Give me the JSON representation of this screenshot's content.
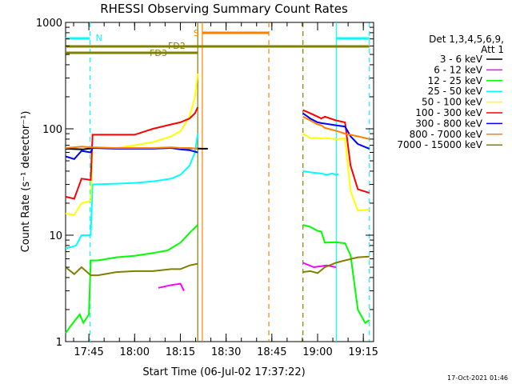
{
  "chart_data": {
    "type": "line",
    "title": "RHESSI Observing Summary Count Rates",
    "xlabel": "Start Time (06-Jul-02 17:37:22)",
    "ylabel": "Count Rate (s⁻¹ detector⁻¹)",
    "y_scale": "log",
    "ylim": [
      1,
      1000
    ],
    "xlim": [
      17.6228,
      19.3061
    ],
    "x_ticks": [
      {
        "value": 17.75,
        "label": "17:45"
      },
      {
        "value": 18.0,
        "label": "18:00"
      },
      {
        "value": 18.25,
        "label": "18:15"
      },
      {
        "value": 18.5,
        "label": "18:30"
      },
      {
        "value": 18.75,
        "label": "18:45"
      },
      {
        "value": 19.0,
        "label": "19:00"
      },
      {
        "value": 19.25,
        "label": "19:15"
      }
    ],
    "y_ticks": [
      {
        "value": 1,
        "label": "1"
      },
      {
        "value": 10,
        "label": "10"
      },
      {
        "value": 100,
        "label": "100"
      },
      {
        "value": 1000,
        "label": "1000"
      }
    ],
    "legend_header": [
      "Det 1,3,4,5,6,9,",
      "Att 1"
    ],
    "series": [
      {
        "name": "3 - 6 keV",
        "color": "#000000",
        "points": [
          [
            17.623,
            65
          ],
          [
            17.72,
            64
          ],
          [
            17.77,
            66
          ],
          [
            18.0,
            66
          ],
          [
            18.25,
            66
          ],
          [
            18.37,
            65
          ],
          [
            18.4,
            65
          ]
        ]
      },
      {
        "name": "6 - 12 keV",
        "color": "#ff00ff",
        "points": [
          [
            18.13,
            3.2
          ],
          [
            18.2,
            3.4
          ],
          [
            18.25,
            3.5
          ],
          [
            18.27,
            3.0
          ],
          [
            18.92,
            5.5
          ],
          [
            18.98,
            5.0
          ],
          [
            19.05,
            5.2
          ],
          [
            19.1,
            5.0
          ]
        ]
      },
      {
        "name": "12 - 25 keV",
        "color": "#00ff00",
        "points": [
          [
            17.623,
            1.2
          ],
          [
            17.65,
            1.4
          ],
          [
            17.7,
            1.8
          ],
          [
            17.72,
            1.5
          ],
          [
            17.75,
            1.8
          ],
          [
            17.76,
            5.8
          ],
          [
            17.8,
            5.8
          ],
          [
            17.9,
            6.2
          ],
          [
            18.0,
            6.4
          ],
          [
            18.1,
            6.8
          ],
          [
            18.18,
            7.2
          ],
          [
            18.25,
            8.5
          ],
          [
            18.3,
            10.5
          ],
          [
            18.345,
            12.5
          ],
          [
            18.92,
            12.5
          ],
          [
            18.96,
            12
          ],
          [
            19.0,
            11
          ],
          [
            19.02,
            10.8
          ],
          [
            19.04,
            8.5
          ],
          [
            19.1,
            8.6
          ],
          [
            19.15,
            8.4
          ],
          [
            19.18,
            6.5
          ],
          [
            19.22,
            2.0
          ],
          [
            19.26,
            1.5
          ],
          [
            19.283,
            1.6
          ]
        ]
      },
      {
        "name": "25 - 50 keV",
        "color": "#00ffff",
        "points": [
          [
            17.623,
            7.5
          ],
          [
            17.68,
            8.0
          ],
          [
            17.71,
            10
          ],
          [
            17.76,
            10
          ],
          [
            17.77,
            30
          ],
          [
            17.9,
            30.5
          ],
          [
            18.0,
            31
          ],
          [
            18.1,
            32
          ],
          [
            18.2,
            34
          ],
          [
            18.25,
            37
          ],
          [
            18.3,
            45
          ],
          [
            18.33,
            60
          ],
          [
            18.345,
            90
          ],
          [
            18.92,
            40
          ],
          [
            18.96,
            39
          ],
          [
            19.02,
            38
          ],
          [
            19.05,
            37
          ],
          [
            19.08,
            38
          ],
          [
            19.1,
            37
          ],
          [
            19.115,
            37.5
          ]
        ]
      },
      {
        "name": "50 - 100 keV",
        "color": "#ffff00",
        "points": [
          [
            17.623,
            16
          ],
          [
            17.67,
            15.5
          ],
          [
            17.71,
            20
          ],
          [
            17.76,
            21
          ],
          [
            17.77,
            66
          ],
          [
            17.9,
            66
          ],
          [
            18.0,
            70
          ],
          [
            18.1,
            75
          ],
          [
            18.2,
            85
          ],
          [
            18.25,
            95
          ],
          [
            18.3,
            130
          ],
          [
            18.33,
            200
          ],
          [
            18.345,
            330
          ],
          [
            18.92,
            90
          ],
          [
            18.96,
            82
          ],
          [
            19.0,
            82
          ],
          [
            19.02,
            81
          ],
          [
            19.04,
            82
          ],
          [
            19.1,
            80
          ],
          [
            19.15,
            81
          ],
          [
            19.18,
            26
          ],
          [
            19.22,
            17
          ],
          [
            19.283,
            17.5
          ]
        ]
      },
      {
        "name": "100 - 300 keV",
        "color": "#ff0000",
        "points": [
          [
            17.623,
            23
          ],
          [
            17.67,
            22
          ],
          [
            17.71,
            34
          ],
          [
            17.76,
            33
          ],
          [
            17.77,
            88
          ],
          [
            17.9,
            88
          ],
          [
            18.0,
            88
          ],
          [
            18.1,
            100
          ],
          [
            18.2,
            110
          ],
          [
            18.25,
            115
          ],
          [
            18.3,
            125
          ],
          [
            18.33,
            140
          ],
          [
            18.345,
            160
          ],
          [
            18.92,
            150
          ],
          [
            18.96,
            140
          ],
          [
            19.0,
            130
          ],
          [
            19.02,
            125
          ],
          [
            19.04,
            130
          ],
          [
            19.1,
            120
          ],
          [
            19.15,
            115
          ],
          [
            19.18,
            45
          ],
          [
            19.22,
            27
          ],
          [
            19.283,
            25
          ]
        ]
      },
      {
        "name": "300 - 800 keV",
        "color": "#0000ff",
        "points": [
          [
            17.623,
            55
          ],
          [
            17.67,
            52
          ],
          [
            17.71,
            62
          ],
          [
            17.76,
            60
          ],
          [
            17.77,
            66
          ],
          [
            17.9,
            65
          ],
          [
            18.0,
            65
          ],
          [
            18.1,
            65
          ],
          [
            18.2,
            66
          ],
          [
            18.25,
            64
          ],
          [
            18.3,
            63
          ],
          [
            18.345,
            60
          ],
          [
            18.92,
            140
          ],
          [
            18.96,
            125
          ],
          [
            19.0,
            115
          ],
          [
            19.02,
            113
          ],
          [
            19.04,
            112
          ],
          [
            19.1,
            108
          ],
          [
            19.15,
            105
          ],
          [
            19.18,
            85
          ],
          [
            19.22,
            72
          ],
          [
            19.283,
            65
          ]
        ]
      },
      {
        "name": "800 - 7000 keV",
        "color": "#ff8000",
        "points": [
          [
            17.623,
            66
          ],
          [
            17.67,
            67
          ],
          [
            17.71,
            68
          ],
          [
            17.76,
            67
          ],
          [
            17.9,
            66
          ],
          [
            18.0,
            66
          ],
          [
            18.1,
            66
          ],
          [
            18.2,
            67
          ],
          [
            18.25,
            66
          ],
          [
            18.3,
            66
          ],
          [
            18.345,
            65
          ],
          [
            18.92,
            130
          ],
          [
            18.96,
            120
          ],
          [
            19.0,
            110
          ],
          [
            19.02,
            108
          ],
          [
            19.04,
            102
          ],
          [
            19.1,
            96
          ],
          [
            19.15,
            90
          ],
          [
            19.22,
            85
          ],
          [
            19.283,
            80
          ]
        ]
      },
      {
        "name": "7000 - 15000 keV",
        "color": "#808000",
        "points": [
          [
            17.623,
            5.0
          ],
          [
            17.67,
            4.3
          ],
          [
            17.71,
            5.0
          ],
          [
            17.76,
            4.2
          ],
          [
            17.8,
            4.2
          ],
          [
            17.9,
            4.5
          ],
          [
            18.0,
            4.6
          ],
          [
            18.1,
            4.6
          ],
          [
            18.2,
            4.8
          ],
          [
            18.25,
            4.8
          ],
          [
            18.3,
            5.2
          ],
          [
            18.345,
            5.4
          ],
          [
            18.92,
            4.5
          ],
          [
            18.96,
            4.6
          ],
          [
            19.0,
            4.4
          ],
          [
            19.04,
            5.0
          ],
          [
            19.1,
            5.5
          ],
          [
            19.15,
            5.8
          ],
          [
            19.22,
            6.2
          ],
          [
            19.283,
            6.3
          ]
        ]
      }
    ],
    "night_intervals_cyan": [
      [
        17.623,
        17.7556
      ],
      [
        19.102,
        19.283
      ]
    ],
    "night_labels": [
      {
        "x": 17.77,
        "label": "N"
      }
    ],
    "saa_intervals_orange": [
      [
        18.37,
        18.7335
      ]
    ],
    "saa_labels": [
      {
        "x": 18.37,
        "label": "S"
      }
    ],
    "flare_decimation": [
      {
        "label": "FD2",
        "x0": 17.623,
        "x1": 18.37
      },
      {
        "label": "FD3",
        "x0": 17.623,
        "x1": 18.345
      },
      {
        "label": "",
        "x0": 18.37,
        "x1": 19.283
      }
    ],
    "vertical_markers": [
      {
        "x": 17.7556,
        "color": "#00ffff",
        "style": "dashed"
      },
      {
        "x": 18.345,
        "color": "#808000",
        "style": "solid"
      },
      {
        "x": 18.37,
        "color": "#ff8000",
        "style": "solid"
      },
      {
        "x": 18.7335,
        "color": "#ff8000",
        "style": "dashed"
      },
      {
        "x": 18.92,
        "color": "#808000",
        "style": "dashed"
      },
      {
        "x": 19.102,
        "color": "#00ffff",
        "style": "solid"
      },
      {
        "x": 19.283,
        "color": "#00ffff",
        "style": "dashed"
      }
    ]
  },
  "footer": {
    "timestamp": "17-Oct-2021 01:46"
  }
}
